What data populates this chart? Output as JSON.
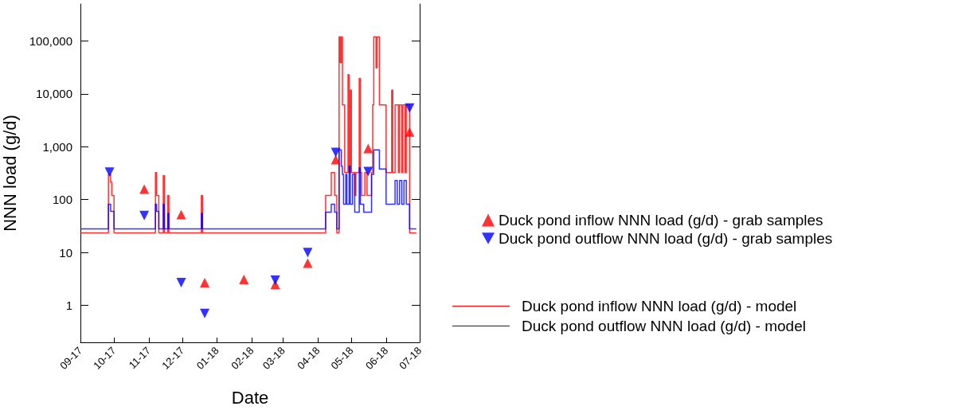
{
  "chart_data": {
    "type": "scatter",
    "xlabel": "Date",
    "ylabel": "NNN load (g/d)",
    "log": "y",
    "grid": false,
    "legend": "right",
    "xlim": [
      "2017-09-01",
      "2018-07-01"
    ],
    "xticks": [
      {
        "value": "2017-09-01",
        "label": "09-17"
      },
      {
        "value": "2017-10-01",
        "label": "10-17"
      },
      {
        "value": "2017-11-01",
        "label": "11-17"
      },
      {
        "value": "2017-12-01",
        "label": "12-17"
      },
      {
        "value": "2018-01-01",
        "label": "01-18"
      },
      {
        "value": "2018-02-01",
        "label": "02-18"
      },
      {
        "value": "2018-03-01",
        "label": "03-18"
      },
      {
        "value": "2018-04-01",
        "label": "04-18"
      },
      {
        "value": "2018-05-01",
        "label": "05-18"
      },
      {
        "value": "2018-06-01",
        "label": "06-18"
      },
      {
        "value": "2018-07-01",
        "label": "07-18"
      }
    ],
    "ylim": [
      0.2,
      500000
    ],
    "yticks": [
      1,
      10,
      100,
      {
        "value": 1000,
        "label": "1,000"
      },
      {
        "value": 10000,
        "label": "10,000"
      },
      {
        "value": 100000,
        "label": "100,000"
      }
    ],
    "series": [
      {
        "name": "Duck pond inflow NNN load (g/d) - grab samples",
        "marker": "triangle",
        "color": "#ff0000",
        "x": [
          "2017-10-28",
          "2017-11-30",
          "2017-12-21",
          "2018-01-25",
          "2018-02-22",
          "2018-03-23",
          "2018-04-17",
          "2018-05-16",
          "2018-06-22"
        ],
        "values": [
          158,
          52,
          2.7,
          3.1,
          2.5,
          6.3,
          570,
          930,
          1900
        ]
      },
      {
        "name": "Duck pond outflow NNN load (g/d) - grab samples",
        "marker": "triangle-down",
        "color": "#0000ff",
        "x": [
          "2017-09-27",
          "2017-10-28",
          "2017-11-30",
          "2017-12-21",
          "2018-02-22",
          "2018-03-23",
          "2018-04-17",
          "2018-05-16",
          "2018-06-22"
        ],
        "values": [
          330,
          50,
          2.7,
          0.7,
          3.0,
          10,
          780,
          340,
          5400
        ]
      },
      {
        "name": "Duck pond inflow NNN load (g/d) - model",
        "type": "step",
        "marker": "none",
        "line_style": "solid",
        "color": "#ff0000",
        "x": [
          "2017-09-01",
          "2017-09-26",
          "2017-09-28",
          "2017-09-29",
          "2017-10-01",
          "2017-11-07",
          "2017-11-08",
          "2017-11-10",
          "2017-11-14",
          "2017-11-15",
          "2017-11-18",
          "2017-11-19",
          "2017-12-18",
          "2017-12-19",
          "2018-04-08",
          "2018-04-13",
          "2018-04-16",
          "2018-04-18",
          "2018-04-20",
          "2018-04-21",
          "2018-04-22",
          "2018-04-23",
          "2018-04-25",
          "2018-04-28",
          "2018-04-29",
          "2018-04-30",
          "2018-05-01",
          "2018-05-04",
          "2018-05-05",
          "2018-05-08",
          "2018-05-09",
          "2018-05-10",
          "2018-05-13",
          "2018-05-15",
          "2018-05-19",
          "2018-05-20",
          "2018-05-21",
          "2018-05-23",
          "2018-05-24",
          "2018-05-26",
          "2018-06-01",
          "2018-06-06",
          "2018-06-07",
          "2018-06-09",
          "2018-06-12",
          "2018-06-13",
          "2018-06-15",
          "2018-06-16",
          "2018-06-18",
          "2018-06-19",
          "2018-06-22",
          "2018-06-28"
        ],
        "values": [
          23.5,
          300,
          215,
          120,
          23.5,
          325,
          120,
          23.5,
          285,
          23.5,
          120,
          23.5,
          120,
          23.5,
          120,
          325,
          120,
          23.5,
          120000,
          39000,
          120000,
          6200,
          325,
          23000,
          325,
          11700,
          325,
          120,
          325,
          19600,
          325,
          120,
          325,
          120,
          325,
          6200,
          120000,
          31000,
          120000,
          6200,
          325,
          11700,
          325,
          6200,
          325,
          6200,
          325,
          6200,
          325,
          6200,
          23.5,
          23.5
        ]
      },
      {
        "name": "Duck pond outflow NNN load (g/d) - model",
        "type": "step",
        "marker": "none",
        "line_style": "solid",
        "color": "#0000ff",
        "x": [
          "2017-09-01",
          "2017-09-26",
          "2017-09-28",
          "2017-10-01",
          "2017-11-07",
          "2017-11-08",
          "2017-11-10",
          "2017-11-14",
          "2017-11-15",
          "2017-11-18",
          "2017-11-19",
          "2017-12-18",
          "2017-12-19",
          "2018-04-08",
          "2018-04-13",
          "2018-04-16",
          "2018-04-18",
          "2018-04-20",
          "2018-04-22",
          "2018-04-23",
          "2018-04-24",
          "2018-04-26",
          "2018-04-27",
          "2018-04-29",
          "2018-04-30",
          "2018-05-02",
          "2018-05-04",
          "2018-05-08",
          "2018-05-09",
          "2018-05-12",
          "2018-05-19",
          "2018-05-21",
          "2018-05-26",
          "2018-06-01",
          "2018-06-09",
          "2018-06-11",
          "2018-06-13",
          "2018-06-15",
          "2018-06-17",
          "2018-06-19",
          "2018-06-22",
          "2018-06-28"
        ],
        "values": [
          28,
          82,
          60,
          28,
          82,
          60,
          28,
          82,
          28,
          55,
          28,
          55,
          28,
          58,
          82,
          58,
          28,
          870,
          430,
          300,
          82,
          300,
          82,
          430,
          82,
          300,
          58,
          400,
          82,
          58,
          300,
          870,
          380,
          82,
          230,
          82,
          230,
          82,
          230,
          82,
          28,
          28
        ]
      }
    ]
  }
}
